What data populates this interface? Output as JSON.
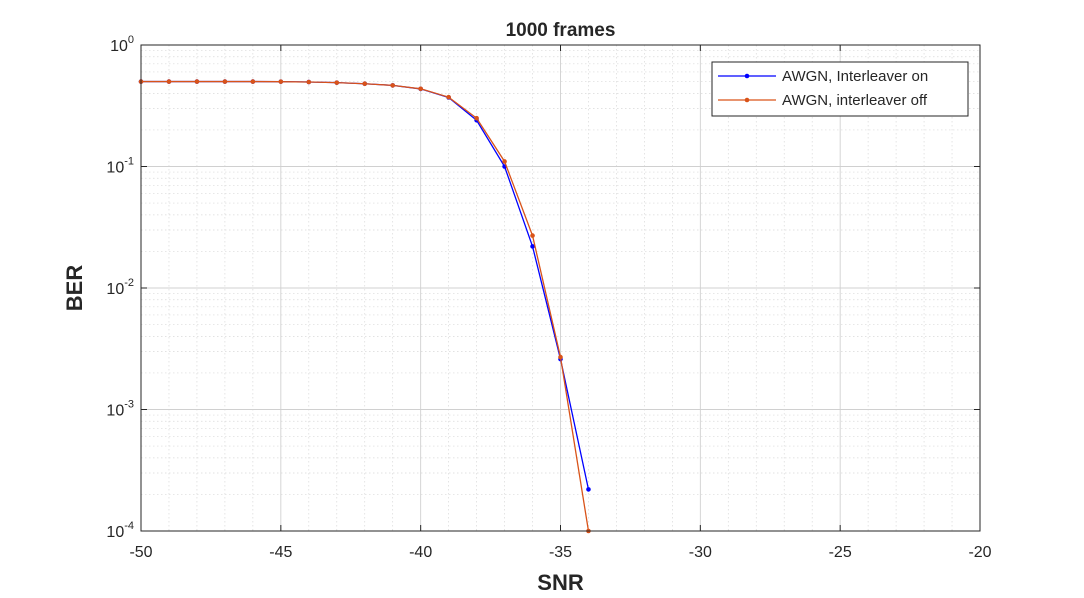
{
  "chart_data": {
    "type": "line",
    "title": "1000 frames",
    "xlabel": "SNR",
    "ylabel": "BER",
    "xlim": [
      -50,
      -20
    ],
    "ylim": [
      0.0001,
      1
    ],
    "yscale": "log",
    "grid": true,
    "minor_grid": true,
    "legend_placement": "top-right",
    "x_ticks": [
      "-50",
      "-45",
      "-40",
      "-35",
      "-30",
      "-25",
      "-20"
    ],
    "y_ticks": [
      {
        "base": "10",
        "exp": "0"
      },
      {
        "base": "10",
        "exp": "-1"
      },
      {
        "base": "10",
        "exp": "-2"
      },
      {
        "base": "10",
        "exp": "-3"
      },
      {
        "base": "10",
        "exp": "-4"
      }
    ],
    "series": [
      {
        "name": "AWGN, Interleaver on",
        "color": "#0000ff",
        "x": [
          -50,
          -49,
          -48,
          -47,
          -46,
          -45,
          -44,
          -43,
          -42,
          -41,
          -40,
          -39,
          -38,
          -37,
          -36,
          -35,
          -34
        ],
        "y": [
          0.5,
          0.5,
          0.5,
          0.5,
          0.5,
          0.499,
          0.496,
          0.49,
          0.48,
          0.465,
          0.435,
          0.37,
          0.24,
          0.1,
          0.022,
          0.0026,
          0.00022
        ]
      },
      {
        "name": "AWGN, interleaver off",
        "color": "#d95319",
        "x": [
          -50,
          -49,
          -48,
          -47,
          -46,
          -45,
          -44,
          -43,
          -42,
          -41,
          -40,
          -39,
          -38,
          -37,
          -36,
          -35,
          -34
        ],
        "y": [
          0.5,
          0.5,
          0.5,
          0.5,
          0.5,
          0.499,
          0.496,
          0.49,
          0.48,
          0.465,
          0.436,
          0.372,
          0.25,
          0.11,
          0.027,
          0.0027,
          0.0001
        ]
      }
    ]
  }
}
